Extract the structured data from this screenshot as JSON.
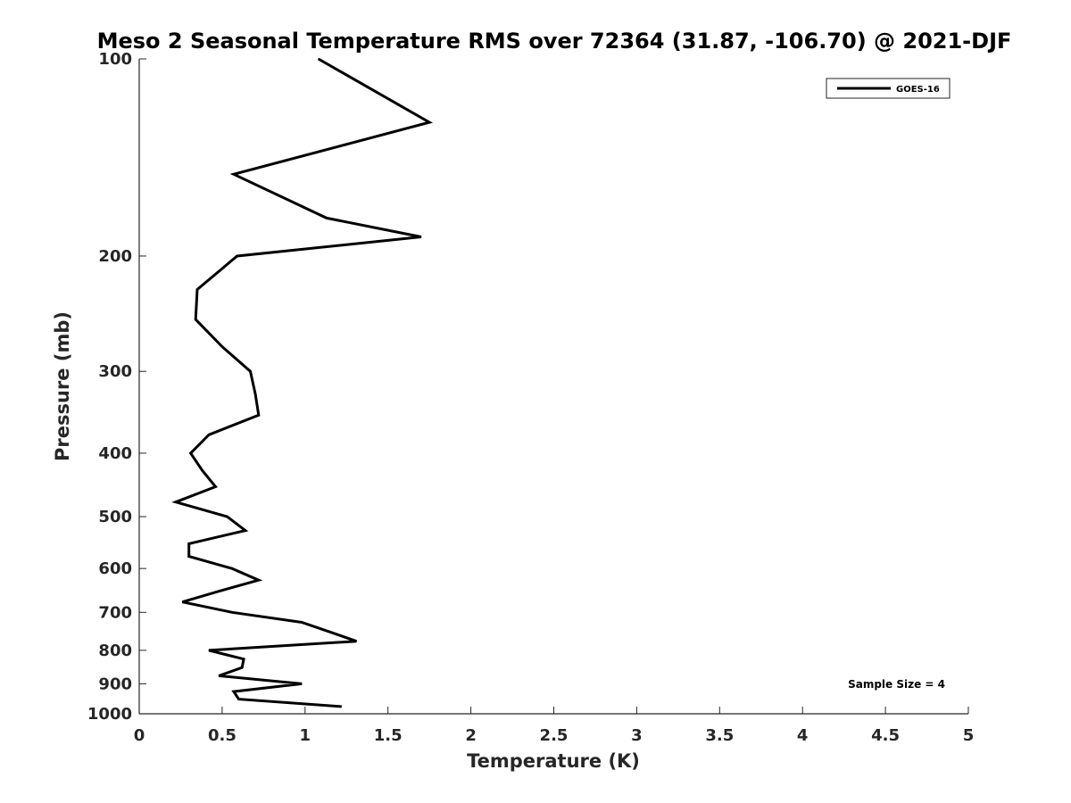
{
  "chart_data": {
    "type": "line",
    "title": "Meso 2 Seasonal Temperature RMS over 72364 (31.87, -106.70) @ 2021-DJF",
    "xlabel": "Temperature (K)",
    "ylabel": "Pressure (mb)",
    "xlim": [
      0,
      5
    ],
    "ylim": [
      1000,
      100
    ],
    "yscale": "log",
    "y_reversed": true,
    "grid": false,
    "legend_position": "top-right",
    "x_ticks": [
      "0",
      "0.5",
      "1",
      "1.5",
      "2",
      "2.5",
      "3",
      "3.5",
      "4",
      "4.5",
      "5"
    ],
    "y_ticks": [
      "100",
      "200",
      "300",
      "400",
      "500",
      "600",
      "700",
      "800",
      "900",
      "1000"
    ],
    "series": [
      {
        "name": "GOES-16",
        "color": "#000000",
        "points": [
          [
            1.08,
            100
          ],
          [
            1.75,
            125
          ],
          [
            0.57,
            150
          ],
          [
            1.13,
            175
          ],
          [
            1.7,
            187
          ],
          [
            0.59,
            200
          ],
          [
            0.35,
            225
          ],
          [
            0.34,
            250
          ],
          [
            0.5,
            275
          ],
          [
            0.67,
            300
          ],
          [
            0.7,
            325
          ],
          [
            0.72,
            350
          ],
          [
            0.42,
            375
          ],
          [
            0.31,
            400
          ],
          [
            0.38,
            425
          ],
          [
            0.46,
            450
          ],
          [
            0.22,
            475
          ],
          [
            0.53,
            500
          ],
          [
            0.64,
            525
          ],
          [
            0.3,
            550
          ],
          [
            0.3,
            575
          ],
          [
            0.56,
            600
          ],
          [
            0.72,
            625
          ],
          [
            0.48,
            650
          ],
          [
            0.26,
            675
          ],
          [
            0.56,
            700
          ],
          [
            0.98,
            725
          ],
          [
            1.15,
            750
          ],
          [
            1.31,
            775
          ],
          [
            0.42,
            800
          ],
          [
            0.63,
            825
          ],
          [
            0.62,
            850
          ],
          [
            0.48,
            875
          ],
          [
            0.98,
            900
          ],
          [
            0.57,
            925
          ],
          [
            0.6,
            950
          ],
          [
            1.22,
            975
          ]
        ]
      }
    ],
    "annotation": "Sample Size = 4"
  }
}
